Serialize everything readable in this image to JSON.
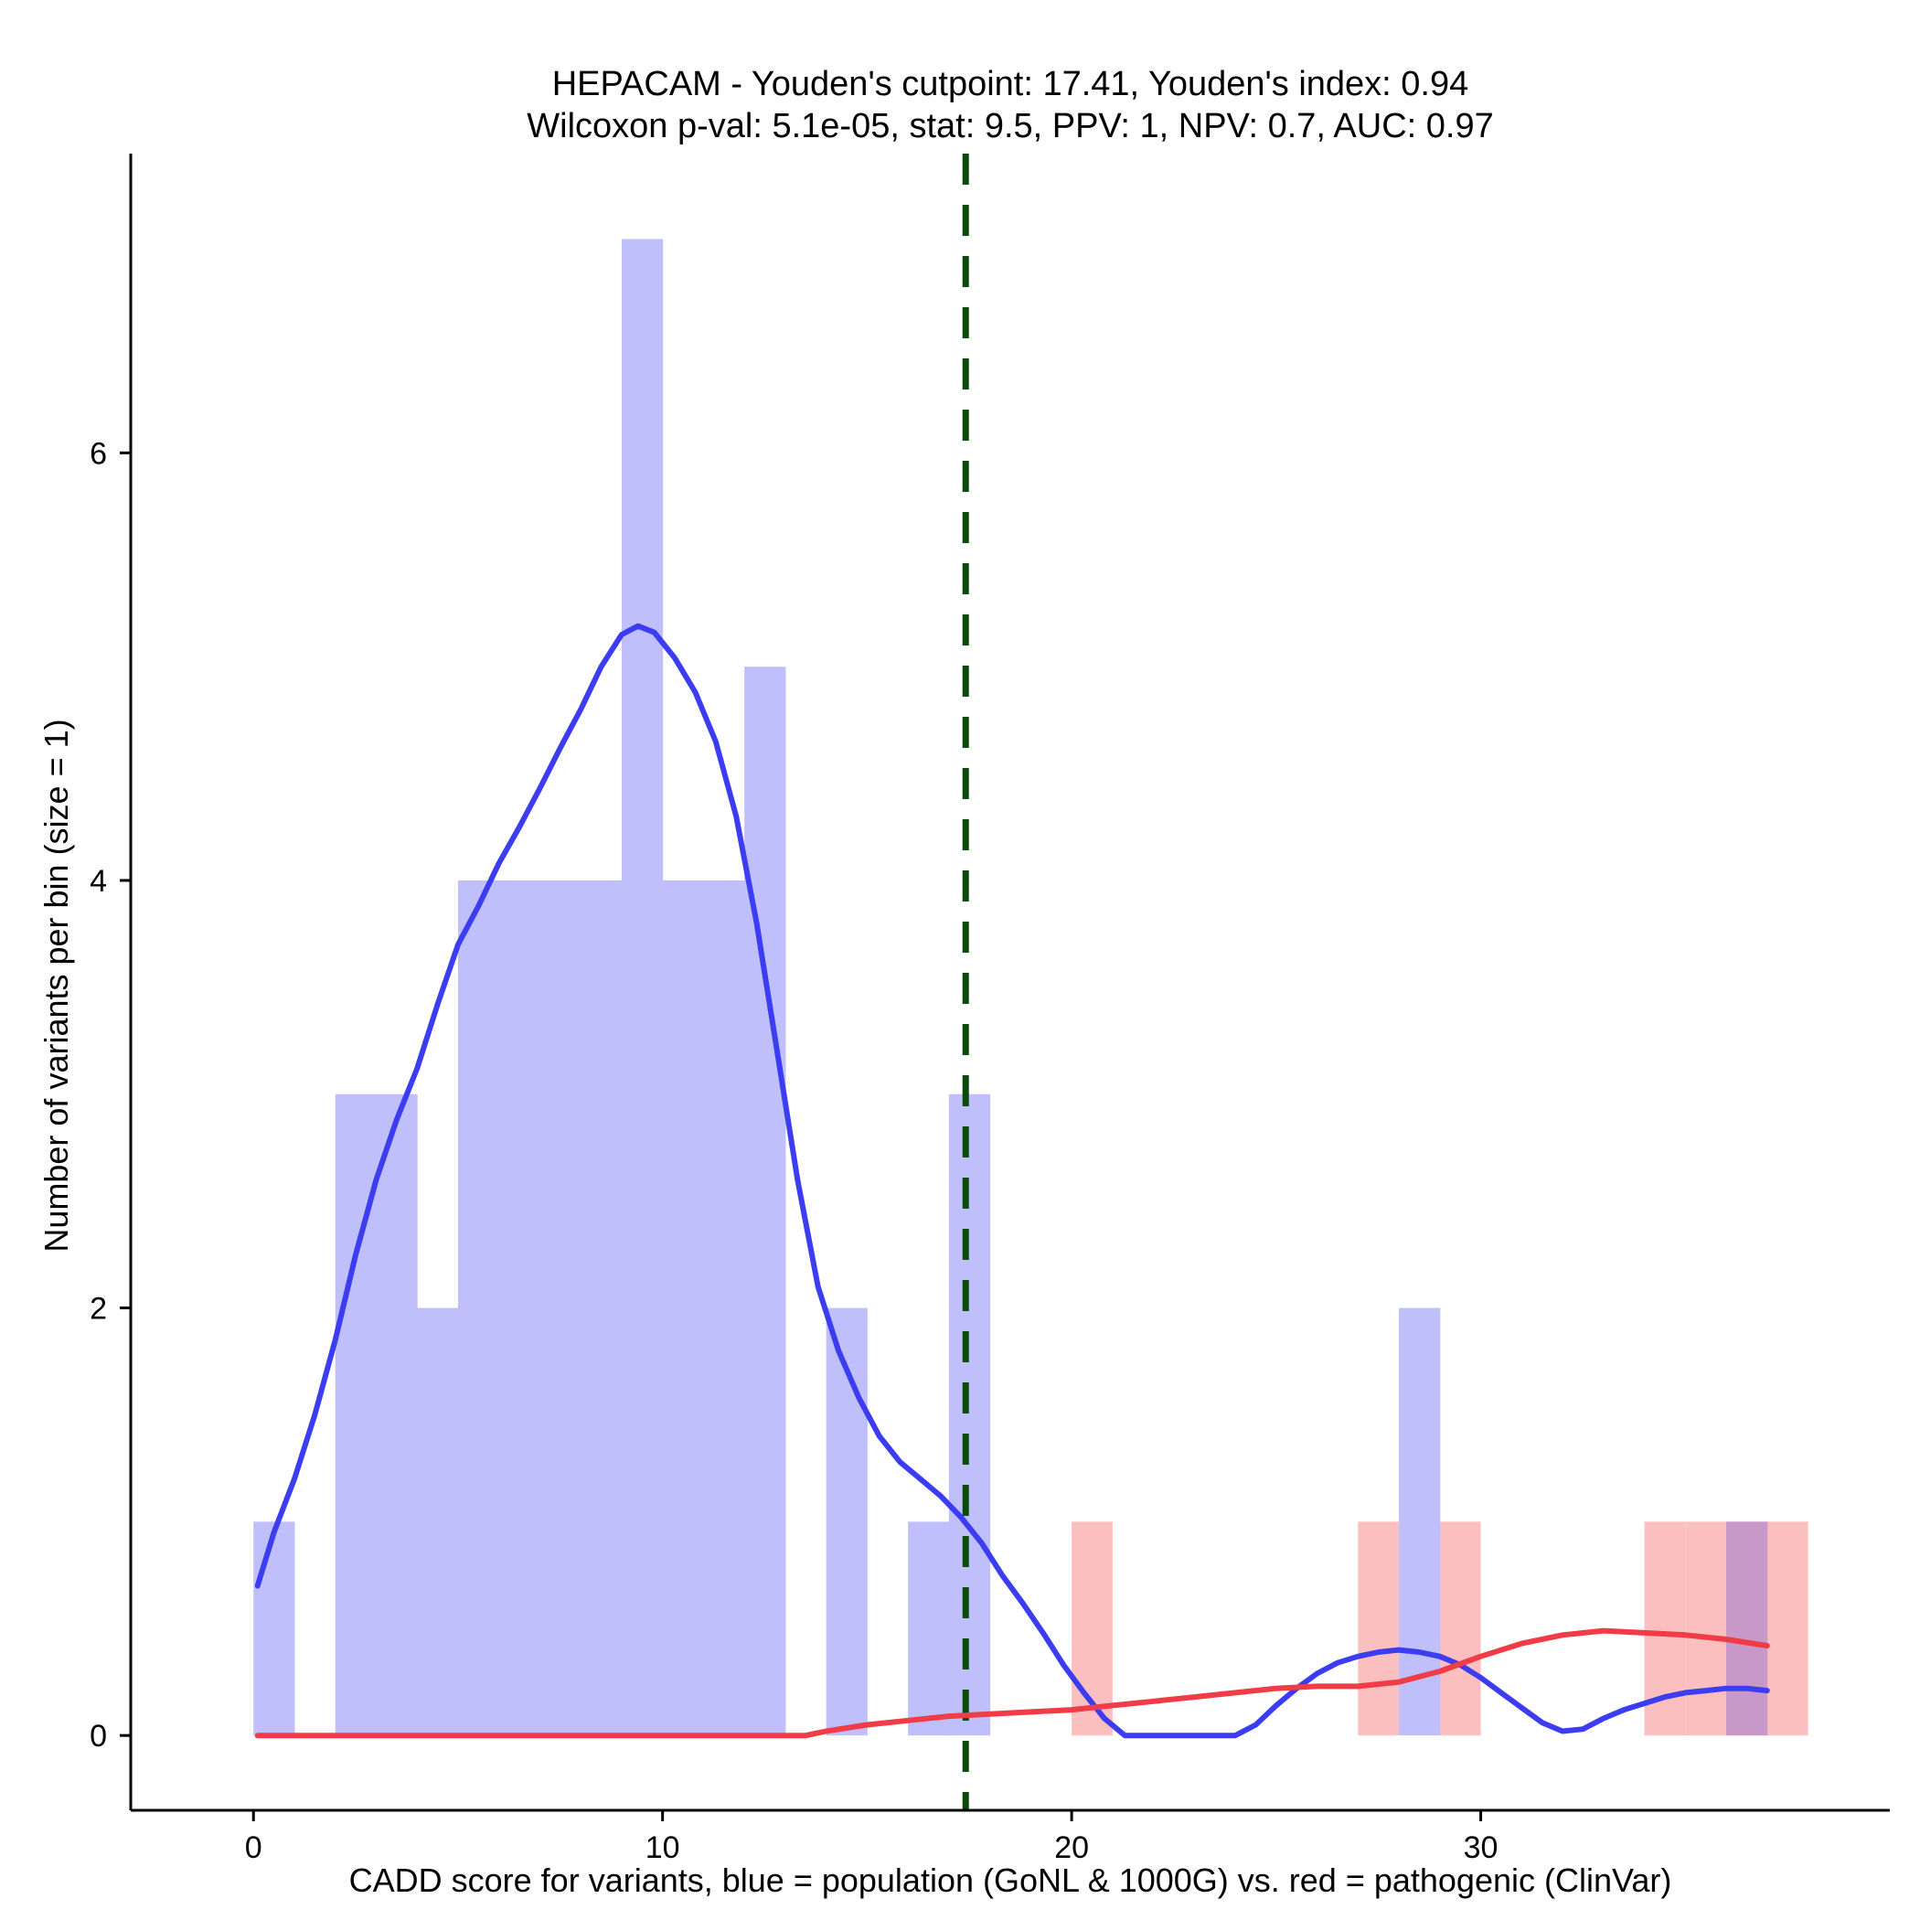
{
  "chart_data": {
    "type": "histogram",
    "title_lines": [
      "HEPACAM - Youden's cutpoint: 17.41, Youden's index: 0.94",
      "Wilcoxon p-val: 5.1e-05, stat: 9.5, PPV: 1, NPV: 0.7, AUC: 0.97"
    ],
    "xlabel": "CADD score for variants, blue = population (GoNL & 1000G) vs. red = pathogenic (ClinVar)",
    "ylabel": "Number of variants per bin (size = 1)",
    "xlim": [
      -3,
      40
    ],
    "ylim": [
      -0.35,
      7.4
    ],
    "xticks": [
      0,
      10,
      20,
      30
    ],
    "yticks": [
      0,
      2,
      4,
      6
    ],
    "bin_size": 1,
    "cutpoint": 17.41,
    "cutpoint_color": "#0a4a0a",
    "series": [
      {
        "name": "population (GoNL & 1000G)",
        "color": "#bfbffb",
        "bins": [
          {
            "start": 0,
            "count": 1
          },
          {
            "start": 2,
            "count": 3
          },
          {
            "start": 3,
            "count": 3
          },
          {
            "start": 4,
            "count": 2
          },
          {
            "start": 5,
            "count": 4
          },
          {
            "start": 6,
            "count": 4
          },
          {
            "start": 7,
            "count": 4
          },
          {
            "start": 8,
            "count": 4
          },
          {
            "start": 9,
            "count": 7
          },
          {
            "start": 10,
            "count": 4
          },
          {
            "start": 11,
            "count": 4
          },
          {
            "start": 12,
            "count": 5
          },
          {
            "start": 14,
            "count": 2
          },
          {
            "start": 16,
            "count": 1
          },
          {
            "start": 17,
            "count": 3
          },
          {
            "start": 28,
            "count": 2
          },
          {
            "start": 36,
            "count": 1
          }
        ],
        "density_color": "#3c3cf0",
        "density": [
          [
            0.1,
            0.7
          ],
          [
            0.5,
            0.95
          ],
          [
            1.0,
            1.2
          ],
          [
            1.5,
            1.5
          ],
          [
            2.0,
            1.85
          ],
          [
            2.5,
            2.25
          ],
          [
            3.0,
            2.6
          ],
          [
            3.5,
            2.88
          ],
          [
            4.0,
            3.12
          ],
          [
            4.5,
            3.42
          ],
          [
            5.0,
            3.7
          ],
          [
            5.5,
            3.88
          ],
          [
            6.0,
            4.08
          ],
          [
            6.5,
            4.25
          ],
          [
            7.0,
            4.43
          ],
          [
            7.5,
            4.62
          ],
          [
            8.0,
            4.8
          ],
          [
            8.5,
            5.0
          ],
          [
            9.0,
            5.15
          ],
          [
            9.4,
            5.19
          ],
          [
            9.8,
            5.16
          ],
          [
            10.3,
            5.04
          ],
          [
            10.8,
            4.88
          ],
          [
            11.3,
            4.65
          ],
          [
            11.8,
            4.3
          ],
          [
            12.3,
            3.8
          ],
          [
            12.8,
            3.2
          ],
          [
            13.3,
            2.6
          ],
          [
            13.8,
            2.1
          ],
          [
            14.3,
            1.8
          ],
          [
            14.8,
            1.58
          ],
          [
            15.3,
            1.4
          ],
          [
            15.8,
            1.28
          ],
          [
            16.3,
            1.2
          ],
          [
            16.8,
            1.12
          ],
          [
            17.3,
            1.02
          ],
          [
            17.8,
            0.9
          ],
          [
            18.3,
            0.75
          ],
          [
            18.8,
            0.62
          ],
          [
            19.3,
            0.48
          ],
          [
            19.8,
            0.33
          ],
          [
            20.3,
            0.2
          ],
          [
            20.8,
            0.08
          ],
          [
            21.3,
            0.0
          ],
          [
            22.0,
            0.0
          ],
          [
            23.0,
            0.0
          ],
          [
            24.0,
            0.0
          ],
          [
            24.5,
            0.05
          ],
          [
            25.0,
            0.14
          ],
          [
            25.5,
            0.22
          ],
          [
            26.0,
            0.29
          ],
          [
            26.5,
            0.34
          ],
          [
            27.0,
            0.37
          ],
          [
            27.5,
            0.39
          ],
          [
            28.0,
            0.4
          ],
          [
            28.5,
            0.39
          ],
          [
            29.0,
            0.37
          ],
          [
            29.5,
            0.33
          ],
          [
            30.0,
            0.27
          ],
          [
            30.5,
            0.2
          ],
          [
            31.0,
            0.13
          ],
          [
            31.5,
            0.06
          ],
          [
            32.0,
            0.02
          ],
          [
            32.5,
            0.03
          ],
          [
            33.0,
            0.08
          ],
          [
            33.5,
            0.12
          ],
          [
            34.0,
            0.15
          ],
          [
            34.5,
            0.18
          ],
          [
            35.0,
            0.2
          ],
          [
            35.5,
            0.21
          ],
          [
            36.0,
            0.22
          ],
          [
            36.5,
            0.22
          ],
          [
            37.0,
            0.21
          ]
        ]
      },
      {
        "name": "pathogenic (ClinVar)",
        "color": "#fbbfbf",
        "bins": [
          {
            "start": 20,
            "count": 1
          },
          {
            "start": 27,
            "count": 1
          },
          {
            "start": 29,
            "count": 1
          },
          {
            "start": 34,
            "count": 1
          },
          {
            "start": 35,
            "count": 1
          },
          {
            "start": 36,
            "count": 1
          },
          {
            "start": 37,
            "count": 1
          }
        ],
        "density_color": "#f03c46",
        "density": [
          [
            0.1,
            0.0
          ],
          [
            2.0,
            0.0
          ],
          [
            4.0,
            0.0
          ],
          [
            6.0,
            0.0
          ],
          [
            8.0,
            0.0
          ],
          [
            10.0,
            0.0
          ],
          [
            12.0,
            0.0
          ],
          [
            13.5,
            0.0
          ],
          [
            14.0,
            0.02
          ],
          [
            15.0,
            0.05
          ],
          [
            16.0,
            0.07
          ],
          [
            17.0,
            0.09
          ],
          [
            18.0,
            0.1
          ],
          [
            19.0,
            0.11
          ],
          [
            20.0,
            0.12
          ],
          [
            21.0,
            0.14
          ],
          [
            22.0,
            0.16
          ],
          [
            23.0,
            0.18
          ],
          [
            24.0,
            0.2
          ],
          [
            25.0,
            0.22
          ],
          [
            26.0,
            0.23
          ],
          [
            27.0,
            0.23
          ],
          [
            28.0,
            0.25
          ],
          [
            29.0,
            0.3
          ],
          [
            30.0,
            0.37
          ],
          [
            31.0,
            0.43
          ],
          [
            32.0,
            0.47
          ],
          [
            33.0,
            0.49
          ],
          [
            34.0,
            0.48
          ],
          [
            35.0,
            0.47
          ],
          [
            36.0,
            0.45
          ],
          [
            37.0,
            0.42
          ]
        ]
      }
    ],
    "overlap_color": "#c898c8"
  }
}
